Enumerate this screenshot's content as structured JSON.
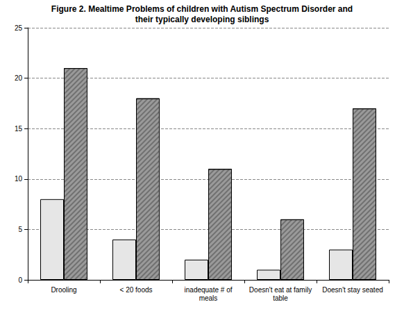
{
  "chart_data": {
    "type": "bar",
    "title": "Figure 2. Mealtime Problems of children with Autism Spectrum Disorder and\ntheir typically developing siblings",
    "categories": [
      "Drooling",
      "< 20 foods",
      "inadequate # of\nmeals",
      "Doesn't eat at family\ntable",
      "Doesn't stay seated"
    ],
    "series": [
      {
        "color": "#e6e6e6",
        "values": [
          8,
          4,
          2,
          1,
          3
        ]
      },
      {
        "color": "#9a9a9a",
        "values": [
          21,
          18,
          11,
          6,
          17
        ]
      }
    ],
    "ylim": [
      0,
      25
    ],
    "yticks": [
      0,
      5,
      10,
      15,
      20,
      25
    ],
    "grid": true
  }
}
